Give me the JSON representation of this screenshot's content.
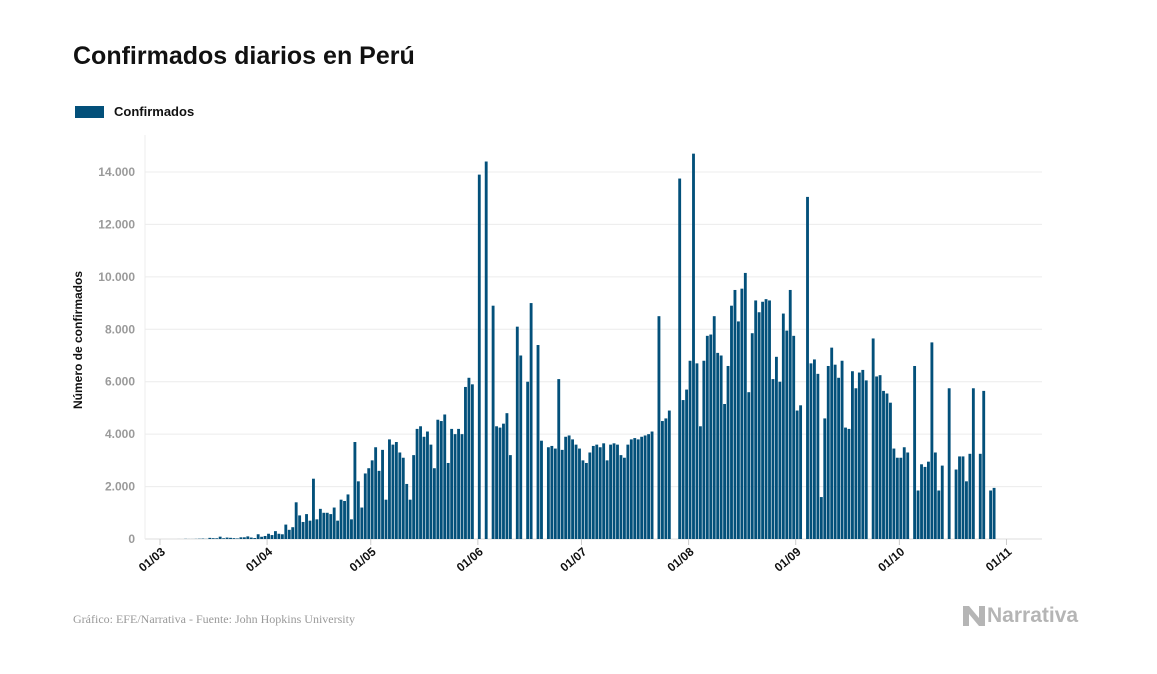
{
  "chart_data": {
    "type": "bar",
    "title": "Confirmados diarios en Perú",
    "ylabel": "Número de confirmados",
    "xlabel": "",
    "legend": {
      "placement": "top-left",
      "entries": [
        "Confirmados"
      ]
    },
    "grid": true,
    "ylim": [
      0,
      14000
    ],
    "yticks": [
      0,
      2000,
      4000,
      6000,
      8000,
      10000,
      12000,
      14000
    ],
    "ytick_labels": [
      "0",
      "2.000",
      "4.000",
      "6.000",
      "8.000",
      "10.000",
      "12.000",
      "14.000"
    ],
    "xtick_labels": [
      "01/03",
      "01/04",
      "01/05",
      "01/06",
      "01/07",
      "01/08",
      "01/09",
      "01/10",
      "01/11"
    ],
    "color": "#03507a",
    "series": [
      {
        "name": "Confirmados",
        "start": "06/03",
        "values": [
          1,
          0,
          6,
          2,
          2,
          6,
          11,
          16,
          5,
          43,
          31,
          28,
          89,
          29,
          55,
          45,
          32,
          21,
          64,
          64,
          100,
          55,
          36,
          181,
          85,
          115,
          200,
          150,
          300,
          200,
          180,
          550,
          350,
          450,
          1400,
          900,
          650,
          950,
          700,
          2300,
          750,
          1150,
          1000,
          1000,
          950,
          1200,
          700,
          1500,
          1450,
          1700,
          750,
          3700,
          2200,
          1200,
          2500,
          2700,
          3000,
          3500,
          2600,
          3400,
          1500,
          3800,
          3600,
          3700,
          3300,
          3100,
          2100,
          1500,
          3200,
          4200,
          4300,
          3900,
          4100,
          3600,
          2700,
          4550,
          4500,
          4750,
          2900,
          4200,
          4000,
          4200,
          4000,
          5800,
          6150,
          5900,
          0,
          13900,
          0,
          14400,
          0,
          8900,
          4300,
          4250,
          4400,
          4800,
          3200,
          0,
          8100,
          7000,
          0,
          6000,
          9000,
          0,
          7400,
          3750,
          0,
          3500,
          3550,
          3450,
          6100,
          3400,
          3900,
          3950,
          3800,
          3600,
          3450,
          3000,
          2900,
          3300,
          3550,
          3600,
          3500,
          3650,
          3000,
          3600,
          3650,
          3600,
          3200,
          3100,
          3600,
          3800,
          3850,
          3800,
          3900,
          3950,
          4000,
          4100,
          0,
          8500,
          4500,
          4600,
          4900,
          0,
          0,
          13750,
          5300,
          5700,
          6800,
          14700,
          6700,
          4300,
          6800,
          7750,
          7800,
          8500,
          7100,
          7000,
          5150,
          6600,
          8900,
          9500,
          8300,
          9550,
          10150,
          5600,
          7850,
          9100,
          8650,
          9050,
          9150,
          9100,
          6100,
          6950,
          6000,
          8600,
          7950,
          9500,
          7750,
          4900,
          5100,
          0,
          13050,
          6700,
          6850,
          6300,
          1600,
          4600,
          6600,
          7300,
          6650,
          6150,
          6800,
          4250,
          4200,
          6400,
          5750,
          6350,
          6450,
          6050,
          0,
          7650,
          6200,
          6250,
          5650,
          5550,
          5200,
          3450,
          3100,
          3100,
          3500,
          3300,
          0,
          6600,
          1850,
          2850,
          2750,
          2950,
          7500,
          3300,
          1850,
          2800,
          0,
          5750,
          0,
          2650,
          3150,
          3150,
          2200,
          3250,
          5750,
          0,
          3250,
          5650,
          0,
          1850,
          1950
        ]
      }
    ]
  },
  "footer": "Gráfico: EFE/Narrativa - Fuente: John Hopkins University",
  "logo": "Narrativa"
}
